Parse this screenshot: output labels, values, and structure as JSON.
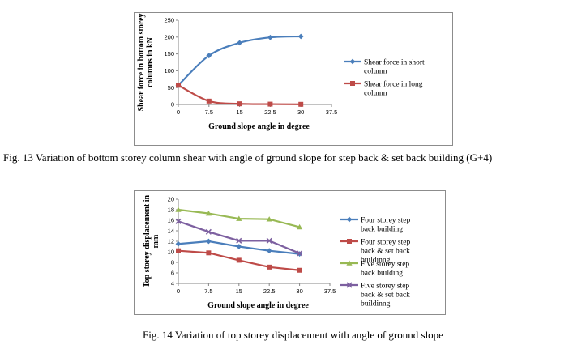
{
  "chart_data": [
    {
      "type": "line",
      "caption": "Fig. 13 Variation of bottom storey column shear with angle of ground slope for step back & set back building (G+4)",
      "xlabel": "Ground slope angle in degree",
      "ylabel": "Shear force in bottom storey columns in kN",
      "x": [
        0,
        7.5,
        15,
        22.5,
        30
      ],
      "xticks": [
        "0",
        "7.5",
        "15",
        "22.5",
        "30",
        "37.5"
      ],
      "xlim": [
        0,
        37.5
      ],
      "yticks": [
        "0",
        "50",
        "100",
        "150",
        "200",
        "250"
      ],
      "ylim": [
        0,
        250
      ],
      "grid": false,
      "legend_position": "right",
      "series": [
        {
          "name": "Shear force in short column",
          "color": "#4a7ebb",
          "marker": "diamond",
          "smooth": true,
          "values": [
            57,
            145,
            183,
            199,
            202
          ]
        },
        {
          "name": "Shear force in long column",
          "color": "#be4b48",
          "marker": "square",
          "smooth": true,
          "values": [
            57,
            10,
            2,
            1,
            0.5
          ]
        }
      ]
    },
    {
      "type": "line",
      "caption": "Fig. 14 Variation of top storey displacement with angle of ground slope",
      "xlabel": "Ground slope angle in degree",
      "ylabel": "Top storey displacement in mm",
      "x": [
        0,
        7.5,
        15,
        22.5,
        30
      ],
      "xticks": [
        "0",
        "7.5",
        "15",
        "22.5",
        "30",
        "37.5"
      ],
      "xlim": [
        0,
        37.5
      ],
      "yticks": [
        "4",
        "6",
        "8",
        "10",
        "12",
        "14",
        "16",
        "18",
        "20"
      ],
      "ylim": [
        4,
        20
      ],
      "grid": false,
      "legend_position": "right",
      "series": [
        {
          "name": "Four storey step back building",
          "color": "#4a7ebb",
          "marker": "diamond",
          "smooth": false,
          "values": [
            11.5,
            12.0,
            11.0,
            10.2,
            9.6
          ]
        },
        {
          "name": "Four storey step back & set back buildinng",
          "color": "#be4b48",
          "marker": "square",
          "smooth": false,
          "values": [
            10.2,
            9.8,
            8.4,
            7.1,
            6.5
          ]
        },
        {
          "name": "Five storey step back building",
          "color": "#98b954",
          "marker": "triangle",
          "smooth": false,
          "values": [
            18.0,
            17.3,
            16.3,
            16.2,
            14.7
          ]
        },
        {
          "name": "Five storey step back & set back buildinng",
          "color": "#7d60a0",
          "marker": "x",
          "smooth": false,
          "values": [
            15.8,
            13.8,
            12.1,
            12.1,
            9.7
          ]
        }
      ]
    }
  ]
}
